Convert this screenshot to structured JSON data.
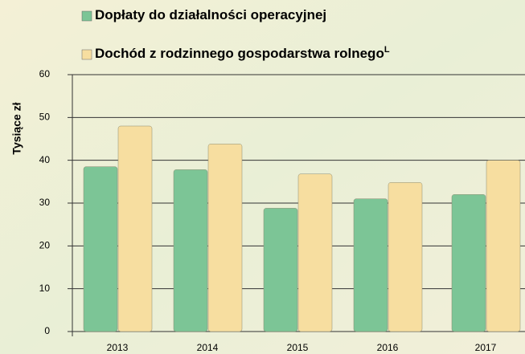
{
  "chart_data": {
    "type": "bar",
    "y_label": "Tysiące zł",
    "categories": [
      "2013",
      "2014",
      "2015",
      "2016",
      "2017"
    ],
    "series": [
      {
        "name": "Dopłaty do działalności operacyjnej",
        "color": "#7cc596",
        "values": [
          38.5,
          37.8,
          28.8,
          31,
          32
        ]
      },
      {
        "name": "Dochód z rodzinnego gospodarstwa rolnego",
        "color": "#f7dea0",
        "values": [
          48,
          43.8,
          36.8,
          34.8,
          40
        ]
      }
    ],
    "legend_footnote": "L",
    "ylim": [
      0,
      60
    ],
    "yticks": [
      0,
      10,
      20,
      30,
      40,
      50,
      60
    ],
    "grid": true
  }
}
